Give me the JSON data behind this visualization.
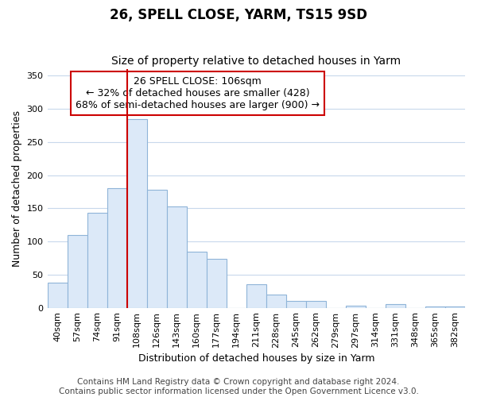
{
  "title": "26, SPELL CLOSE, YARM, TS15 9SD",
  "subtitle": "Size of property relative to detached houses in Yarm",
  "xlabel": "Distribution of detached houses by size in Yarm",
  "ylabel": "Number of detached properties",
  "bar_labels": [
    "40sqm",
    "57sqm",
    "74sqm",
    "91sqm",
    "108sqm",
    "126sqm",
    "143sqm",
    "160sqm",
    "177sqm",
    "194sqm",
    "211sqm",
    "228sqm",
    "245sqm",
    "262sqm",
    "279sqm",
    "297sqm",
    "314sqm",
    "331sqm",
    "348sqm",
    "365sqm",
    "382sqm"
  ],
  "bar_values": [
    38,
    110,
    143,
    180,
    285,
    178,
    153,
    85,
    74,
    0,
    36,
    20,
    10,
    10,
    0,
    3,
    0,
    6,
    0,
    2,
    2
  ],
  "bar_color": "#dce9f8",
  "bar_edge_color": "#8fb4d8",
  "vline_x_index": 4,
  "vline_color": "#cc0000",
  "annotation_lines": [
    "26 SPELL CLOSE: 106sqm",
    "← 32% of detached houses are smaller (428)",
    "68% of semi-detached houses are larger (900) →"
  ],
  "annotation_box_color": "#ffffff",
  "annotation_box_edge_color": "#cc0000",
  "ylim": [
    0,
    360
  ],
  "yticks": [
    0,
    50,
    100,
    150,
    200,
    250,
    300,
    350
  ],
  "footer_lines": [
    "Contains HM Land Registry data © Crown copyright and database right 2024.",
    "Contains public sector information licensed under the Open Government Licence v3.0."
  ],
  "background_color": "#ffffff",
  "grid_color": "#c8d8ec",
  "title_fontsize": 12,
  "subtitle_fontsize": 10,
  "axis_label_fontsize": 9,
  "tick_fontsize": 8,
  "annotation_fontsize": 9,
  "footer_fontsize": 7.5
}
